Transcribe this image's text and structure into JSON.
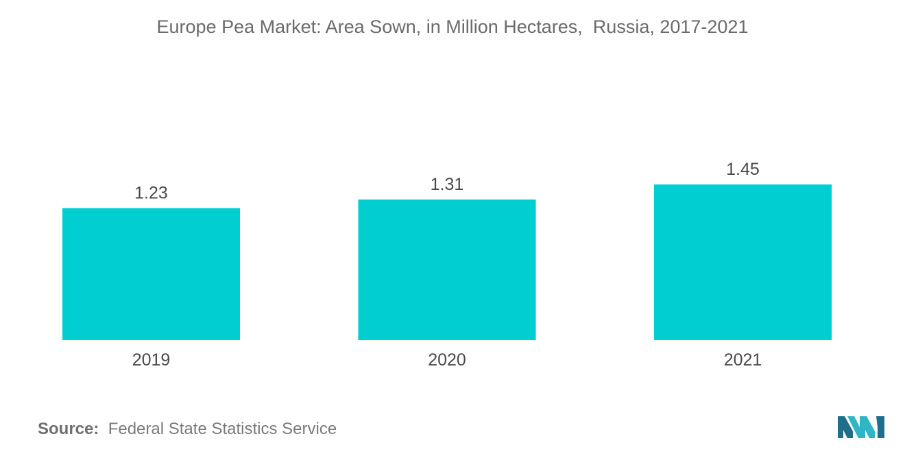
{
  "chart_data": {
    "type": "bar",
    "title": "Europe Pea Market: Area Sown, in Million Hectares,  Russia, 2017-2021",
    "categories": [
      "2019",
      "2020",
      "2021"
    ],
    "values": [
      1.23,
      1.31,
      1.45
    ],
    "data_labels": [
      "1.23",
      "1.31",
      "1.45"
    ],
    "xlabel": "",
    "ylabel": "",
    "ylim": [
      0,
      1.45
    ],
    "grid": false,
    "legend": "none",
    "bar_color": "#00CED1"
  },
  "footer": {
    "source_label": "Source:",
    "source_text": "Federal State Statistics Service"
  },
  "logo": {
    "icon": "mordor-intelligence-logo",
    "colors": [
      "#1F6E8C",
      "#2FB6C4"
    ]
  }
}
